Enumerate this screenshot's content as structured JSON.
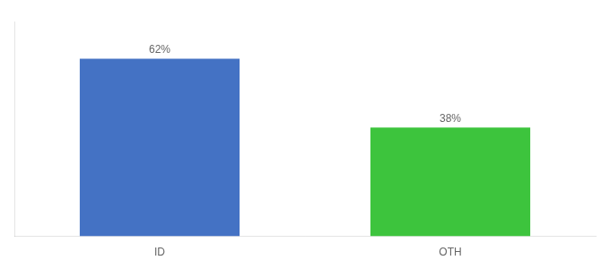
{
  "chart_data": {
    "type": "bar",
    "categories": [
      "ID",
      "OTH"
    ],
    "values": [
      62,
      38
    ],
    "colors": [
      "#4472C4",
      "#3DC43D"
    ],
    "data_labels": true,
    "value_labels": [
      "62%",
      "38%"
    ],
    "ylim": [
      0,
      75
    ],
    "tick_labels": "x",
    "grid": false
  }
}
